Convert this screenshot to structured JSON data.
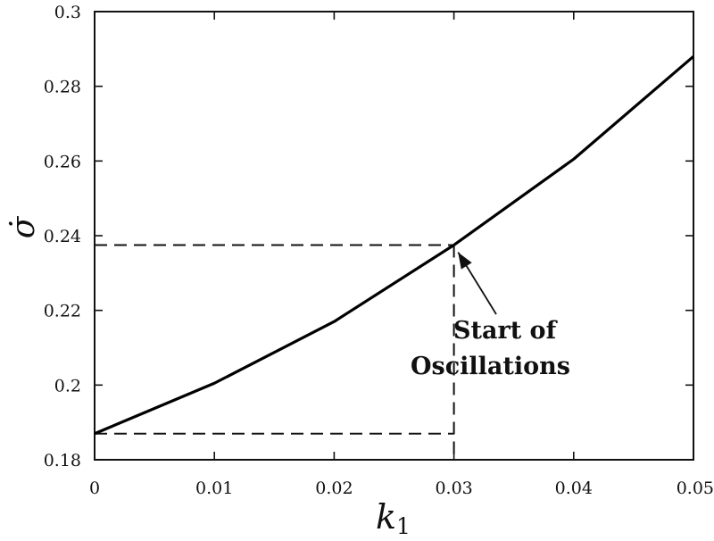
{
  "chart_data": {
    "type": "line",
    "title": "",
    "xlabel": "k",
    "xlabel_sub": "1",
    "ylabel": "σ̇",
    "xlim": [
      0,
      0.05
    ],
    "ylim": [
      0.18,
      0.3
    ],
    "x_ticks": [
      "0",
      "0.01",
      "0.02",
      "0.03",
      "0.04",
      "0.05"
    ],
    "y_ticks": [
      "0.18",
      "0.2",
      "0.22",
      "0.24",
      "0.26",
      "0.28",
      "0.3"
    ],
    "grid": false,
    "series": [
      {
        "x": [
          0,
          0.01,
          0.02,
          0.03,
          0.04,
          0.05
        ],
        "y": [
          0.187,
          0.2005,
          0.217,
          0.2375,
          0.2605,
          0.288
        ],
        "color": "#000000",
        "style": "solid"
      }
    ],
    "reference_lines": {
      "x": 0.03,
      "y_high": 0.2375,
      "y_low": 0.187,
      "style": "dashed"
    },
    "annotation": {
      "lines": [
        "Start of",
        "Oscillations"
      ],
      "arrow_to": [
        0.0302,
        0.2365
      ]
    }
  }
}
